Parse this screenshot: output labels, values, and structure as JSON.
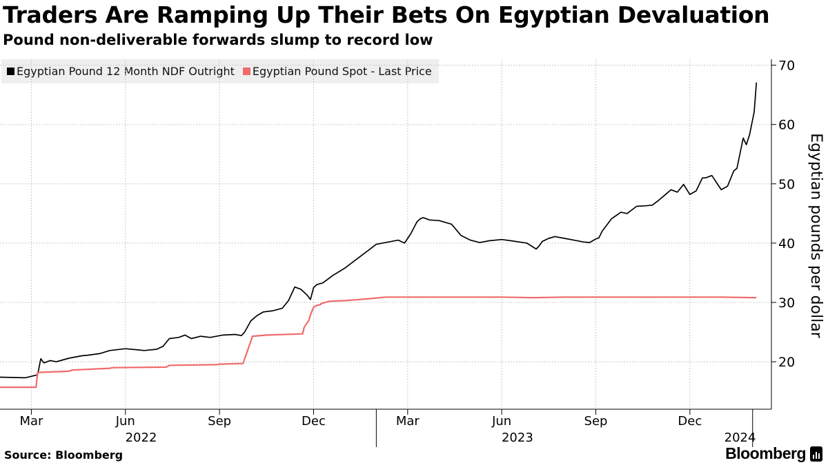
{
  "title": "Traders Are Ramping Up Their Bets On Egyptian Devaluation",
  "subtitle": "Pound non-deliverable forwards slump to record low",
  "source": "Source: Bloomberg",
  "brand": "Bloomberg",
  "brand_icon": "bloomberg-chart-icon",
  "colors": {
    "ndf": "#000000",
    "spot": "#f06a6a",
    "grid": "#c8c8c8",
    "legend_bg": "#efefef"
  },
  "chart_data": {
    "type": "line",
    "title": "Traders Are Ramping Up Their Bets On Egyptian Devaluation",
    "subtitle": "Pound non-deliverable forwards slump to record low",
    "xlabel": "",
    "ylabel": "Egyptian pounds per dollar",
    "ylim": [
      12,
      71
    ],
    "yticks": [
      20,
      30,
      40,
      50,
      60,
      70
    ],
    "x_unit": "months since 2022-01-01",
    "xlim": [
      1.0,
      25.6
    ],
    "xticks": [
      {
        "x": 2.0,
        "label": "Mar"
      },
      {
        "x": 5.0,
        "label": "Jun"
      },
      {
        "x": 8.0,
        "label": "Sep"
      },
      {
        "x": 11.0,
        "label": "Dec"
      },
      {
        "x": 14.0,
        "label": "Mar"
      },
      {
        "x": 17.0,
        "label": "Jun"
      },
      {
        "x": 20.0,
        "label": "Sep"
      },
      {
        "x": 23.0,
        "label": "Dec"
      }
    ],
    "year_labels": [
      {
        "x": 5.5,
        "label": "2022"
      },
      {
        "x": 17.5,
        "label": "2023"
      },
      {
        "x": 24.6,
        "label": "2024"
      }
    ],
    "legend": [
      "Egyptian Pound 12 Month NDF Outright",
      "Egyptian Pound Spot - Last Price"
    ],
    "grid": true,
    "series": [
      {
        "name": "Egyptian Pound 12 Month NDF Outright",
        "color": "#000000",
        "x": [
          1.0,
          1.8,
          2.2,
          2.3,
          2.4,
          2.6,
          2.8,
          3.0,
          3.2,
          3.6,
          3.8,
          4.2,
          4.5,
          5.0,
          5.4,
          5.6,
          6.0,
          6.2,
          6.4,
          6.7,
          6.9,
          7.1,
          7.4,
          7.7,
          8.1,
          8.5,
          8.7,
          8.8,
          9.0,
          9.2,
          9.4,
          9.7,
          10.0,
          10.2,
          10.4,
          10.6,
          10.8,
          10.9,
          11.0,
          11.1,
          11.3,
          11.6,
          12.0,
          12.3,
          12.6,
          13.0,
          13.4,
          13.7,
          13.9,
          14.1,
          14.3,
          14.4,
          14.5,
          14.7,
          15.0,
          15.4,
          15.7,
          16.0,
          16.3,
          16.6,
          17.0,
          17.3,
          17.8,
          18.1,
          18.2,
          18.3,
          18.5,
          18.7,
          19.0,
          19.3,
          19.6,
          19.8,
          20.0,
          20.1,
          20.2,
          20.5,
          20.8,
          21.0,
          21.3,
          21.6,
          21.8,
          22.0,
          22.2,
          22.4,
          22.6,
          22.8,
          23.0,
          23.2,
          23.4,
          23.5,
          23.7,
          23.9,
          24.0,
          24.2,
          24.4,
          24.5,
          24.7,
          24.8,
          24.9,
          25.05,
          25.1,
          25.12
        ],
        "values": [
          17.4,
          17.3,
          17.8,
          20.5,
          19.8,
          20.2,
          20.0,
          20.3,
          20.6,
          21.0,
          21.1,
          21.4,
          21.9,
          22.2,
          22.0,
          21.9,
          22.1,
          22.6,
          23.9,
          24.1,
          24.5,
          23.9,
          24.3,
          24.1,
          24.5,
          24.6,
          24.4,
          25.0,
          26.9,
          27.8,
          28.4,
          28.6,
          29.0,
          30.3,
          32.6,
          32.2,
          31.2,
          30.5,
          32.5,
          33.0,
          33.3,
          34.5,
          35.8,
          37.0,
          38.2,
          39.8,
          40.2,
          40.5,
          40.0,
          41.6,
          43.6,
          44.1,
          44.3,
          43.9,
          43.8,
          43.2,
          41.3,
          40.5,
          40.1,
          40.4,
          40.6,
          40.4,
          40.0,
          39.0,
          39.6,
          40.3,
          40.8,
          41.1,
          40.8,
          40.5,
          40.2,
          40.1,
          40.7,
          40.9,
          42.0,
          44.1,
          45.2,
          45.0,
          46.2,
          46.3,
          46.4,
          47.2,
          48.1,
          49.0,
          48.6,
          49.9,
          48.2,
          48.8,
          51.0,
          51.0,
          51.4,
          49.8,
          49.0,
          49.6,
          52.2,
          52.6,
          57.7,
          56.6,
          58.2,
          62.1,
          65.6,
          67.0
        ]
      },
      {
        "name": "Egyptian Pound Spot - Last Price",
        "color": "#f06a6a",
        "x": [
          1.0,
          2.15,
          2.2,
          3.2,
          3.3,
          4.5,
          4.6,
          6.3,
          6.4,
          7.9,
          8.0,
          8.7,
          8.75,
          9.0,
          9.05,
          9.5,
          10.6,
          10.65,
          10.7,
          10.85,
          10.9,
          11.0,
          11.1,
          11.2,
          11.25,
          11.3,
          11.5,
          12.0,
          12.5,
          12.7,
          13.3,
          14.0,
          15.0,
          16.0,
          17.0,
          18.0,
          19.0,
          20.0,
          21.0,
          22.0,
          23.0,
          24.0,
          25.1
        ],
        "values": [
          15.7,
          15.7,
          18.2,
          18.4,
          18.6,
          18.9,
          19.0,
          19.1,
          19.4,
          19.5,
          19.6,
          19.7,
          19.7,
          23.5,
          24.3,
          24.5,
          24.7,
          24.7,
          25.8,
          27.0,
          27.9,
          29.2,
          29.5,
          29.6,
          29.8,
          29.9,
          30.2,
          30.3,
          30.5,
          30.6,
          30.9,
          30.9,
          30.9,
          30.9,
          30.9,
          30.8,
          30.9,
          30.9,
          30.9,
          30.9,
          30.9,
          30.9,
          30.8
        ]
      }
    ]
  }
}
